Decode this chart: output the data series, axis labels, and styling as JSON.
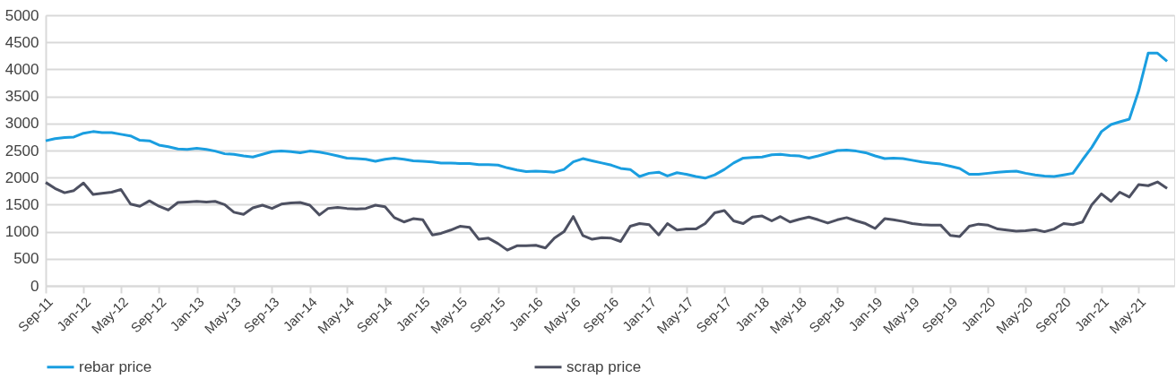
{
  "chart_data": {
    "type": "line",
    "legend": "bottom",
    "grid": "y",
    "marker": "none",
    "line_style": "solid",
    "xlim": [
      "2011-09-01",
      "2021-08-24"
    ],
    "xticks": [
      {
        "value": "2011-09",
        "label": "Sep-11"
      },
      {
        "value": "2012-01",
        "label": "Jan-12"
      },
      {
        "value": "2012-05",
        "label": "May-12"
      },
      {
        "value": "2012-09",
        "label": "Sep-12"
      },
      {
        "value": "2013-01",
        "label": "Jan-13"
      },
      {
        "value": "2013-05",
        "label": "May-13"
      },
      {
        "value": "2013-09",
        "label": "Sep-13"
      },
      {
        "value": "2014-01",
        "label": "Jan-14"
      },
      {
        "value": "2014-05",
        "label": "May-14"
      },
      {
        "value": "2014-09",
        "label": "Sep-14"
      },
      {
        "value": "2015-01",
        "label": "Jan-15"
      },
      {
        "value": "2015-05",
        "label": "May-15"
      },
      {
        "value": "2015-09",
        "label": "Sep-15"
      },
      {
        "value": "2016-01",
        "label": "Jan-16"
      },
      {
        "value": "2016-05",
        "label": "May-16"
      },
      {
        "value": "2016-09",
        "label": "Sep-16"
      },
      {
        "value": "2017-01",
        "label": "Jan-17"
      },
      {
        "value": "2017-05",
        "label": "May-17"
      },
      {
        "value": "2017-09",
        "label": "Sep-17"
      },
      {
        "value": "2018-01",
        "label": "Jan-18"
      },
      {
        "value": "2018-05",
        "label": "May-18"
      },
      {
        "value": "2018-09",
        "label": "Sep-18"
      },
      {
        "value": "2019-01",
        "label": "Jan-19"
      },
      {
        "value": "2019-05",
        "label": "May-19"
      },
      {
        "value": "2019-09",
        "label": "Sep-19"
      },
      {
        "value": "2020-01",
        "label": "Jan-20"
      },
      {
        "value": "2020-05",
        "label": "May-20"
      },
      {
        "value": "2020-09",
        "label": "Sep-20"
      },
      {
        "value": "2021-01",
        "label": "Jan-21"
      },
      {
        "value": "2021-05",
        "label": "May-21"
      }
    ],
    "ylim": [
      0,
      5000
    ],
    "yticks": [
      0,
      500,
      1000,
      1500,
      2000,
      2500,
      3000,
      3500,
      4000,
      4500,
      5000
    ],
    "x": [
      "2011-09",
      "2011-10",
      "2011-11",
      "2011-12",
      "2012-01",
      "2012-02",
      "2012-03",
      "2012-04",
      "2012-05",
      "2012-06",
      "2012-07",
      "2012-08",
      "2012-09",
      "2012-10",
      "2012-11",
      "2012-12",
      "2013-01",
      "2013-02",
      "2013-03",
      "2013-04",
      "2013-05",
      "2013-06",
      "2013-07",
      "2013-08",
      "2013-09",
      "2013-10",
      "2013-11",
      "2013-12",
      "2014-01",
      "2014-02",
      "2014-03",
      "2014-04",
      "2014-05",
      "2014-06",
      "2014-07",
      "2014-08",
      "2014-09",
      "2014-10",
      "2014-11",
      "2014-12",
      "2015-01",
      "2015-02",
      "2015-03",
      "2015-04",
      "2015-05",
      "2015-06",
      "2015-07",
      "2015-08",
      "2015-09",
      "2015-10",
      "2015-11",
      "2015-12",
      "2016-01",
      "2016-02",
      "2016-03",
      "2016-04",
      "2016-05",
      "2016-06",
      "2016-07",
      "2016-08",
      "2016-09",
      "2016-10",
      "2016-11",
      "2016-12",
      "2017-01",
      "2017-02",
      "2017-03",
      "2017-04",
      "2017-05",
      "2017-06",
      "2017-07",
      "2017-08",
      "2017-09",
      "2017-10",
      "2017-11",
      "2017-12",
      "2018-01",
      "2018-02",
      "2018-03",
      "2018-04",
      "2018-05",
      "2018-06",
      "2018-07",
      "2018-08",
      "2018-09",
      "2018-10",
      "2018-11",
      "2018-12",
      "2019-01",
      "2019-02",
      "2019-03",
      "2019-04",
      "2019-05",
      "2019-06",
      "2019-07",
      "2019-08",
      "2019-09",
      "2019-10",
      "2019-11",
      "2019-12",
      "2020-01",
      "2020-02",
      "2020-03",
      "2020-04",
      "2020-05",
      "2020-06",
      "2020-07",
      "2020-08",
      "2020-09",
      "2020-10",
      "2020-11",
      "2020-12",
      "2021-01",
      "2021-02",
      "2021-03",
      "2021-04",
      "2021-05",
      "2021-06",
      "2021-07",
      "2021-08"
    ],
    "series": [
      {
        "name": "rebar price",
        "color": "#1a9ee0",
        "values": [
          2680,
          2720,
          2740,
          2750,
          2820,
          2850,
          2830,
          2830,
          2800,
          2770,
          2690,
          2680,
          2600,
          2570,
          2530,
          2520,
          2540,
          2520,
          2490,
          2440,
          2430,
          2400,
          2380,
          2430,
          2480,
          2490,
          2480,
          2460,
          2490,
          2470,
          2440,
          2400,
          2360,
          2350,
          2340,
          2300,
          2340,
          2360,
          2340,
          2310,
          2300,
          2290,
          2270,
          2270,
          2260,
          2260,
          2240,
          2240,
          2230,
          2180,
          2140,
          2110,
          2120,
          2110,
          2100,
          2150,
          2290,
          2350,
          2310,
          2270,
          2230,
          2170,
          2150,
          2020,
          2080,
          2100,
          2030,
          2090,
          2060,
          2020,
          1990,
          2050,
          2150,
          2270,
          2360,
          2370,
          2380,
          2420,
          2430,
          2410,
          2400,
          2360,
          2400,
          2450,
          2500,
          2510,
          2490,
          2460,
          2400,
          2350,
          2360,
          2350,
          2320,
          2290,
          2270,
          2250,
          2210,
          2170,
          2060,
          2060,
          2080,
          2100,
          2110,
          2120,
          2080,
          2050,
          2030,
          2020,
          2050,
          2080,
          2330,
          2560,
          2850,
          2980,
          3030,
          3080,
          3600,
          4300,
          4300,
          4150
        ]
      },
      {
        "name": "scrap price",
        "color": "#4d5061",
        "values": [
          1910,
          1800,
          1720,
          1760,
          1900,
          1690,
          1710,
          1730,
          1780,
          1510,
          1470,
          1570,
          1470,
          1400,
          1540,
          1550,
          1560,
          1550,
          1560,
          1500,
          1360,
          1320,
          1440,
          1490,
          1430,
          1510,
          1530,
          1540,
          1490,
          1310,
          1430,
          1450,
          1430,
          1420,
          1430,
          1490,
          1460,
          1260,
          1180,
          1240,
          1220,
          940,
          970,
          1030,
          1100,
          1080,
          860,
          880,
          780,
          660,
          740,
          740,
          750,
          700,
          880,
          1000,
          1280,
          930,
          860,
          890,
          880,
          820,
          1100,
          1150,
          1130,
          940,
          1150,
          1030,
          1050,
          1050,
          1150,
          1350,
          1390,
          1200,
          1150,
          1270,
          1290,
          1200,
          1280,
          1180,
          1230,
          1270,
          1220,
          1160,
          1220,
          1260,
          1200,
          1150,
          1060,
          1240,
          1220,
          1190,
          1150,
          1130,
          1120,
          1120,
          930,
          910,
          1100,
          1140,
          1120,
          1050,
          1030,
          1010,
          1020,
          1040,
          1000,
          1050,
          1150,
          1130,
          1180,
          1500,
          1700,
          1560,
          1730,
          1640,
          1870,
          1850,
          1920,
          1800
        ]
      }
    ]
  }
}
